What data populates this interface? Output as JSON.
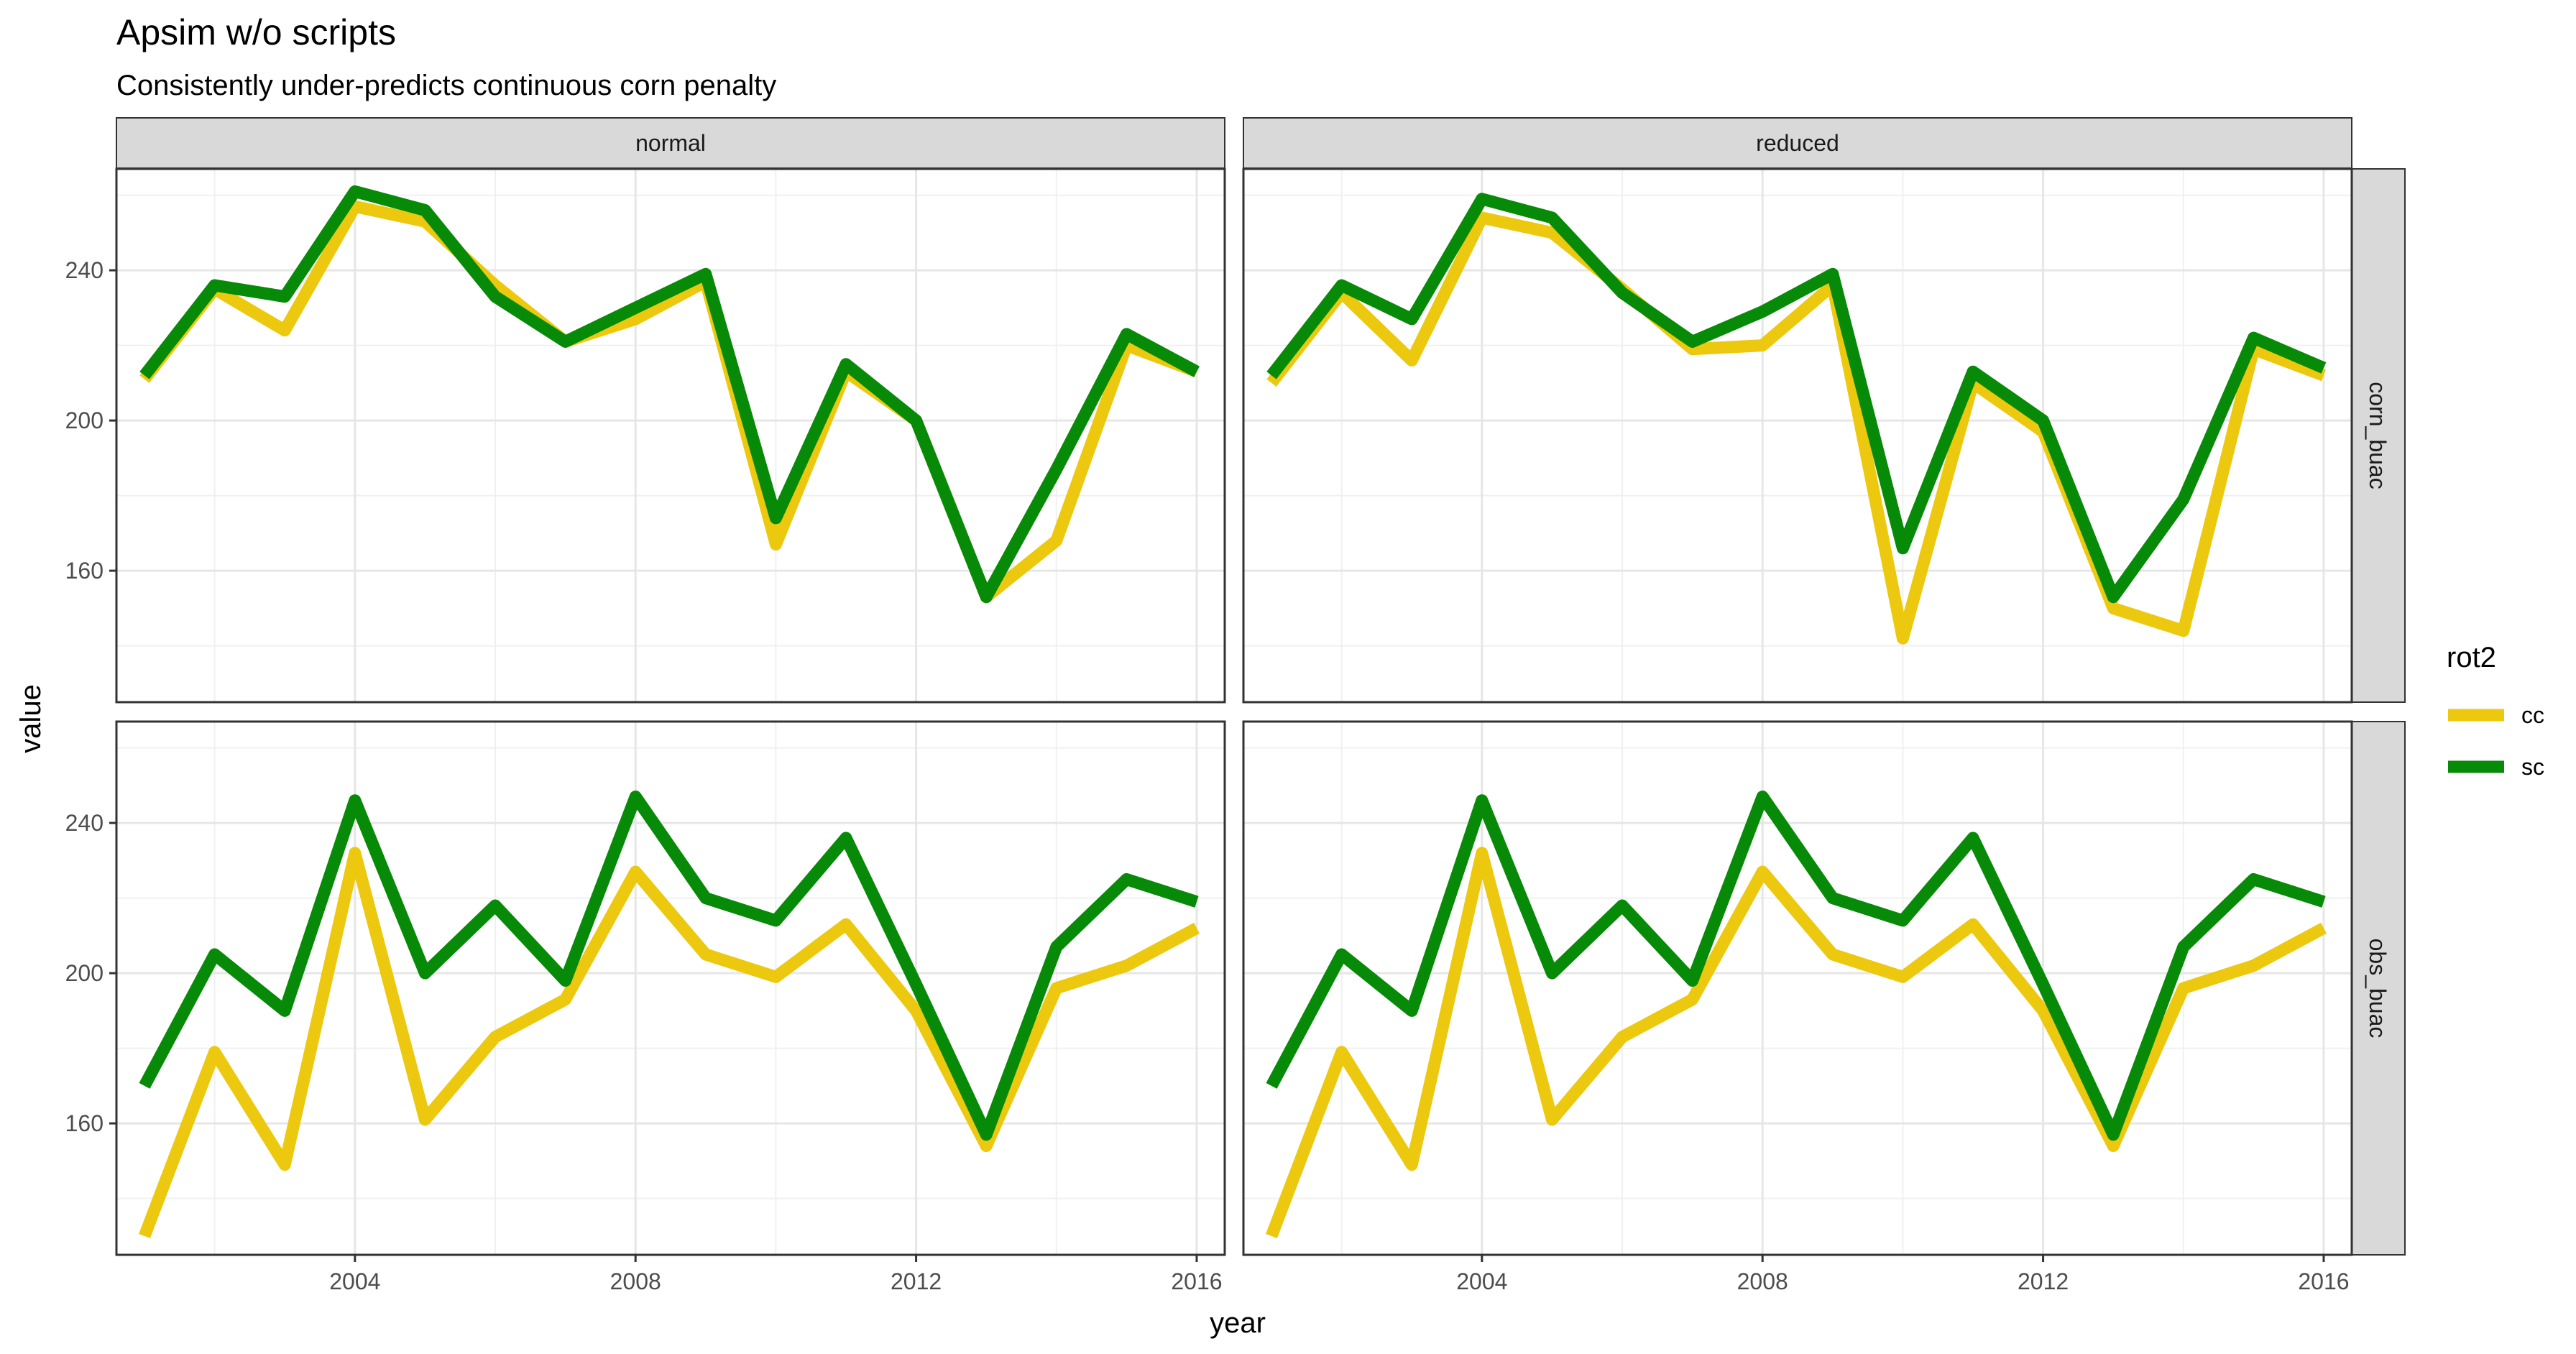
{
  "chart_data": {
    "type": "line",
    "title": "Apsim w/o scripts",
    "subtitle": "Consistently under-predicts continuous corn penalty",
    "xlabel": "year",
    "ylabel": "value",
    "xlim": [
      2000.6,
      2016.4
    ],
    "ylim": [
      125,
      267
    ],
    "x_ticks": [
      2004,
      2008,
      2012,
      2016
    ],
    "y_ticks": [
      160,
      200,
      240
    ],
    "minor_x": [
      2002,
      2006,
      2010,
      2014
    ],
    "minor_y": [
      140,
      180,
      220,
      260
    ],
    "grid": true,
    "legend": {
      "title": "rot2",
      "position": "right",
      "entries": [
        "cc",
        "sc"
      ]
    },
    "colors": {
      "cc": "#ECC90E",
      "sc": "#078A07"
    },
    "facet_cols": [
      "normal",
      "reduced"
    ],
    "facet_rows": [
      "corn_buac",
      "obs_buac"
    ],
    "x": [
      2001,
      2002,
      2003,
      2004,
      2005,
      2006,
      2007,
      2008,
      2009,
      2010,
      2011,
      2012,
      2013,
      2014,
      2015,
      2016
    ],
    "panels": [
      {
        "col": "normal",
        "row": "corn_buac",
        "series": [
          {
            "name": "cc",
            "values": [
              211,
              235,
              224,
              257,
              253,
              236,
              221,
              227,
              237,
              167,
              213,
              200,
              153,
              168,
              220,
              213
            ]
          },
          {
            "name": "sc",
            "values": [
              212,
              236,
              233,
              261,
              256,
              233,
              221,
              230,
              239,
              174,
              215,
              200,
              153,
              187,
              223,
              213
            ]
          }
        ]
      },
      {
        "col": "reduced",
        "row": "corn_buac",
        "series": [
          {
            "name": "cc",
            "values": [
              210,
              234,
              216,
              254,
              250,
              235,
              219,
              220,
              236,
              142,
              210,
              197,
              150,
              144,
              219,
              212
            ]
          },
          {
            "name": "sc",
            "values": [
              212,
              236,
              227,
              259,
              254,
              234,
              221,
              229,
              239,
              166,
              213,
              200,
              153,
              179,
              222,
              214
            ]
          }
        ]
      },
      {
        "col": "normal",
        "row": "obs_buac",
        "series": [
          {
            "name": "cc",
            "values": [
              130,
              179,
              149,
              232,
              161,
              183,
              193,
              227,
              205,
              199,
              213,
              190,
              154,
              196,
              202,
              212
            ]
          },
          {
            "name": "sc",
            "values": [
              170,
              205,
              190,
              246,
              200,
              218,
              198,
              247,
              220,
              214,
              236,
              197,
              157,
              207,
              225,
              219
            ]
          }
        ]
      },
      {
        "col": "reduced",
        "row": "obs_buac",
        "series": [
          {
            "name": "cc",
            "values": [
              130,
              179,
              149,
              232,
              161,
              183,
              193,
              227,
              205,
              199,
              213,
              190,
              154,
              196,
              202,
              212
            ]
          },
          {
            "name": "sc",
            "values": [
              170,
              205,
              190,
              246,
              200,
              218,
              198,
              247,
              220,
              214,
              236,
              197,
              157,
              207,
              225,
              219
            ]
          }
        ]
      }
    ]
  }
}
